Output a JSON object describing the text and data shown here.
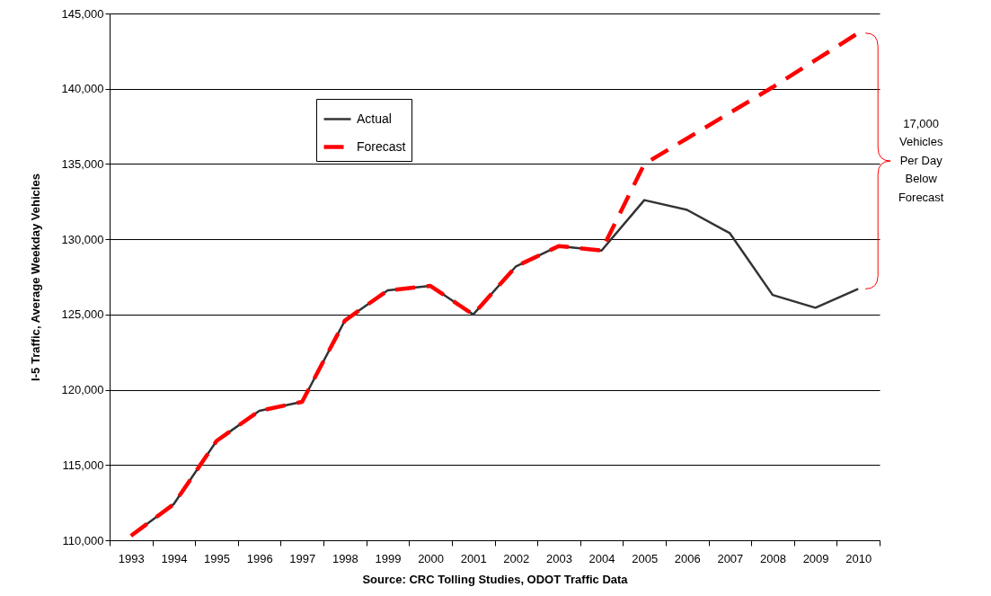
{
  "chart_data": {
    "type": "line",
    "ylabel": "I-5 Traffic, Average Weekday Vehicles",
    "categories": [
      "1993",
      "1994",
      "1995",
      "1996",
      "1997",
      "1998",
      "1999",
      "2000",
      "2001",
      "2002",
      "2003",
      "2004",
      "2005",
      "2006",
      "2007",
      "2008",
      "2009",
      "2010"
    ],
    "series": [
      {
        "name": "Actual",
        "color": "#333333",
        "line_style": "solid",
        "values": [
          110300,
          112400,
          116600,
          118600,
          119200,
          124600,
          126600,
          126900,
          125000,
          128200,
          129550,
          129250,
          132600,
          131950,
          130400,
          126300,
          125450,
          126700
        ]
      },
      {
        "name": "Forecast",
        "color": "#ff0000",
        "line_style": "dashed",
        "values": [
          110300,
          112400,
          116600,
          118600,
          119200,
          124600,
          126600,
          126900,
          125000,
          128200,
          129550,
          129250,
          135000,
          136700,
          138400,
          140100,
          141900,
          143700
        ]
      }
    ],
    "ylim": [
      110000,
      145000
    ],
    "yticks": [
      {
        "value": 110000,
        "label": "110,000"
      },
      {
        "value": 115000,
        "label": "115,000"
      },
      {
        "value": 120000,
        "label": "120,000"
      },
      {
        "value": 125000,
        "label": "125,000"
      },
      {
        "value": 130000,
        "label": "130,000"
      },
      {
        "value": 135000,
        "label": "135,000"
      },
      {
        "value": 140000,
        "label": "140,000"
      },
      {
        "value": 145000,
        "label": "145,000"
      }
    ],
    "grid": "y",
    "legend": "top left",
    "marker": "none",
    "annotations": [
      "Source:  CRC Tolling Studies, ODOT Traffic Data",
      "17,000 Vehicles Per Day Below Forecast"
    ]
  }
}
